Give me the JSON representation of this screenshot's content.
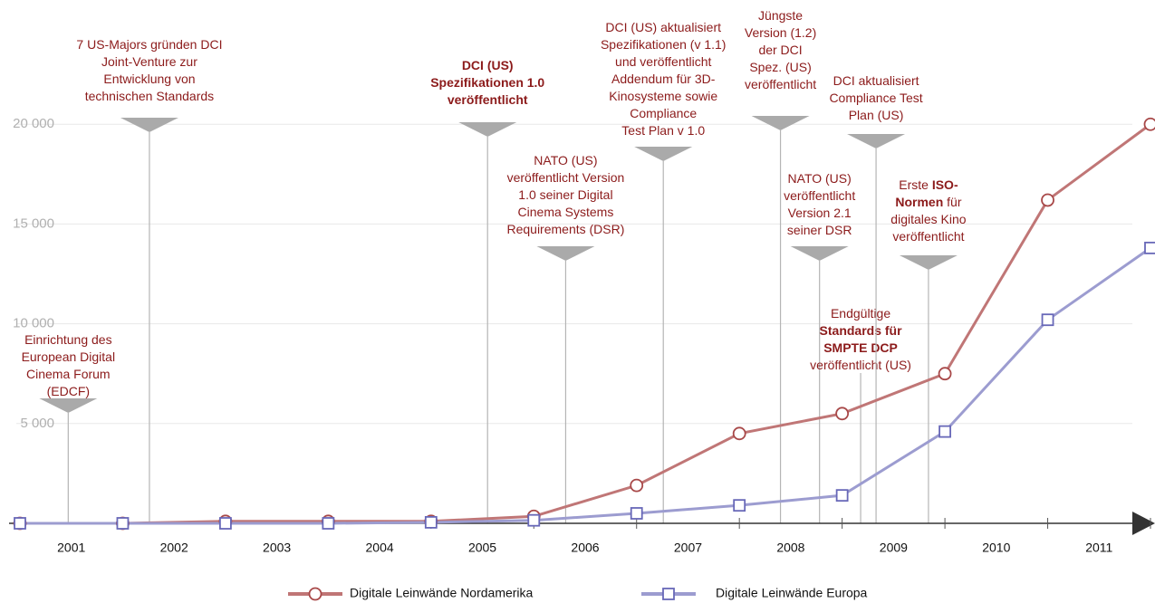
{
  "chart_data": {
    "type": "line",
    "x": [
      2000.5,
      2001.5,
      2002.5,
      2003.5,
      2004.5,
      2005.5,
      2006.5,
      2007.5,
      2008.5,
      2009.5,
      2010.5,
      2011.5
    ],
    "xlim": [
      2000.5,
      2011.5
    ],
    "xticks": [
      2001,
      2002,
      2003,
      2004,
      2005,
      2006,
      2007,
      2008,
      2009,
      2010,
      2011
    ],
    "ylim": [
      0,
      26000
    ],
    "yticks": [
      {
        "value": 5000,
        "label": "5 000"
      },
      {
        "value": 10000,
        "label": "10 000"
      },
      {
        "value": 15000,
        "label": "15 000"
      },
      {
        "value": 20000,
        "label": "20 000"
      }
    ],
    "grid": true,
    "series": [
      {
        "name": "Digitale Leinwände Nordamerika",
        "color": "#c07676",
        "marker": "circle",
        "values": [
          0,
          0,
          100,
          100,
          100,
          350,
          1900,
          4500,
          5500,
          7500,
          16200,
          20000
        ]
      },
      {
        "name": "Digitale Leinwände Europa",
        "color": "#9c9cd0",
        "marker": "square",
        "values": [
          0,
          0,
          0,
          0,
          50,
          150,
          500,
          900,
          1400,
          4600,
          10200,
          13800
        ]
      }
    ],
    "annotations": [
      {
        "x": 2000.97,
        "lines": [
          [
            "Einrichtung des"
          ],
          [
            "European Digital"
          ],
          [
            "Cinema Forum"
          ],
          [
            "(EDCF)"
          ]
        ]
      },
      {
        "x": 2001.76,
        "lines": [
          [
            "7 US-Majors gründen DCI"
          ],
          [
            "Joint-Venture zur"
          ],
          [
            "Entwicklung von"
          ],
          [
            "technischen Standards"
          ]
        ]
      },
      {
        "x": 2005.05,
        "lines": [
          [
            {
              "bold": "DCI (US)"
            }
          ],
          [
            {
              "bold": "Spezifikationen 1.0"
            }
          ],
          [
            {
              "bold": "veröffentlicht"
            }
          ]
        ]
      },
      {
        "x": 2005.81,
        "lines": [
          [
            "NATO (US)"
          ],
          [
            "veröffentlicht Version"
          ],
          [
            "1.0 seiner Digital"
          ],
          [
            "Cinema Systems"
          ],
          [
            "Requirements (DSR)"
          ]
        ]
      },
      {
        "x": 2006.76,
        "lines": [
          [
            "DCI (US) aktualisiert"
          ],
          [
            "Spezifikationen  (v 1.1)"
          ],
          [
            "und veröffentlicht"
          ],
          [
            "Addendum für 3D-"
          ],
          [
            "Kinosysteme sowie"
          ],
          [
            "Compliance"
          ],
          [
            "Test Plan v 1.0"
          ]
        ]
      },
      {
        "x": 2007.9,
        "lines": [
          [
            "Jüngste"
          ],
          [
            "Version (1.2)"
          ],
          [
            "der DCI"
          ],
          [
            "Spez. (US)"
          ],
          [
            "veröffentlicht"
          ]
        ]
      },
      {
        "x": 2008.28,
        "lines": [
          [
            "NATO (US)"
          ],
          [
            "veröffentlicht"
          ],
          [
            "Version 2.1"
          ],
          [
            "seiner DSR"
          ]
        ]
      },
      {
        "x": 2008.68,
        "lines": [
          [
            "Endgültige"
          ],
          [
            {
              "bold": "Standards für"
            }
          ],
          [
            {
              "bold": "SMPTE DCP"
            }
          ],
          [
            "veröffentlicht  (US)"
          ]
        ]
      },
      {
        "x": 2008.83,
        "lines": [
          [
            "DCI aktualisiert"
          ],
          [
            "Compliance Test"
          ],
          [
            "Plan (US)"
          ]
        ]
      },
      {
        "x": 2009.34,
        "lines": [
          [
            "Erste ",
            {
              "bold": "ISO-"
            }
          ],
          [
            {
              "bold": "Normen"
            },
            " für"
          ],
          [
            "digitales Kino"
          ],
          [
            "veröffentlicht"
          ]
        ]
      }
    ]
  }
}
